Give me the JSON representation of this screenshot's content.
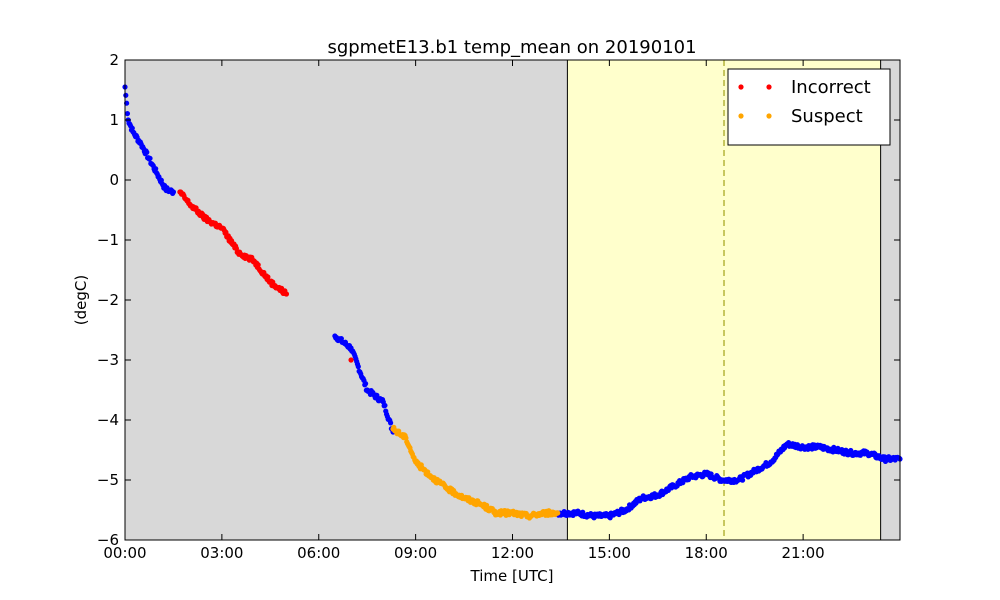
{
  "chart_data": {
    "type": "scatter",
    "title": "sgpmetE13.b1 temp_mean on 20190101",
    "xlabel": "Time [UTC]",
    "ylabel": "(degC)",
    "xlim": [
      0,
      24
    ],
    "ylim": [
      -6,
      2
    ],
    "x_unit": "hours",
    "x_ticks": [
      0,
      3,
      6,
      9,
      12,
      15,
      18,
      21
    ],
    "x_tick_labels": [
      "00:00",
      "03:00",
      "06:00",
      "09:00",
      "12:00",
      "15:00",
      "18:00",
      "21:00"
    ],
    "y_ticks": [
      -6,
      -5,
      -4,
      -3,
      -2,
      -1,
      0,
      1,
      2
    ],
    "y_tick_labels": [
      "−6",
      "−5",
      "−4",
      "−3",
      "−2",
      "−1",
      "0",
      "1",
      "2"
    ],
    "background_color": "#d8d8d8",
    "shaded_region": {
      "x_start": 13.7,
      "x_end": 23.4,
      "color": "#ffffcc"
    },
    "dashed_line": {
      "x": 18.55,
      "color": "#b5b53a"
    },
    "legend": {
      "position": "top-right"
    },
    "series": [
      {
        "name": "",
        "color": "#0000ff",
        "x": [
          0,
          0.1,
          0.25,
          0.5,
          0.75,
          1.0,
          1.25,
          1.5,
          6.5,
          7.0,
          7.5,
          8.0,
          8.3,
          13.4,
          13.7,
          14.0,
          14.5,
          15.0,
          15.5,
          16.0,
          16.5,
          17.0,
          17.5,
          18.0,
          18.5,
          19.0,
          19.5,
          20.0,
          20.5,
          21.0,
          21.5,
          22.0,
          22.5,
          23.0,
          23.5,
          24.0
        ],
        "y": [
          1.55,
          1.0,
          0.8,
          0.6,
          0.35,
          0.1,
          -0.15,
          -0.2,
          -2.6,
          -2.8,
          -3.5,
          -3.7,
          -4.2,
          -5.55,
          -5.55,
          -5.55,
          -5.6,
          -5.6,
          -5.5,
          -5.3,
          -5.25,
          -5.1,
          -4.95,
          -4.9,
          -5.0,
          -5.0,
          -4.85,
          -4.7,
          -4.4,
          -4.45,
          -4.45,
          -4.5,
          -4.55,
          -4.55,
          -4.65,
          -4.65
        ]
      },
      {
        "name": "Incorrect",
        "color": "#ff0000",
        "x": [
          1.7,
          2.0,
          2.5,
          3.0,
          3.5,
          4.0,
          4.5,
          5.0,
          7.0
        ],
        "y": [
          -0.2,
          -0.4,
          -0.65,
          -0.8,
          -1.2,
          -1.35,
          -1.7,
          -1.9,
          -3.0
        ]
      },
      {
        "name": "Suspect",
        "color": "#ffa500",
        "x": [
          8.3,
          8.7,
          9.0,
          9.5,
          10.0,
          10.5,
          11.0,
          11.5,
          12.0,
          12.5,
          13.0,
          13.4
        ],
        "y": [
          -4.15,
          -4.3,
          -4.7,
          -4.95,
          -5.15,
          -5.3,
          -5.4,
          -5.55,
          -5.55,
          -5.6,
          -5.55,
          -5.55
        ]
      }
    ]
  }
}
